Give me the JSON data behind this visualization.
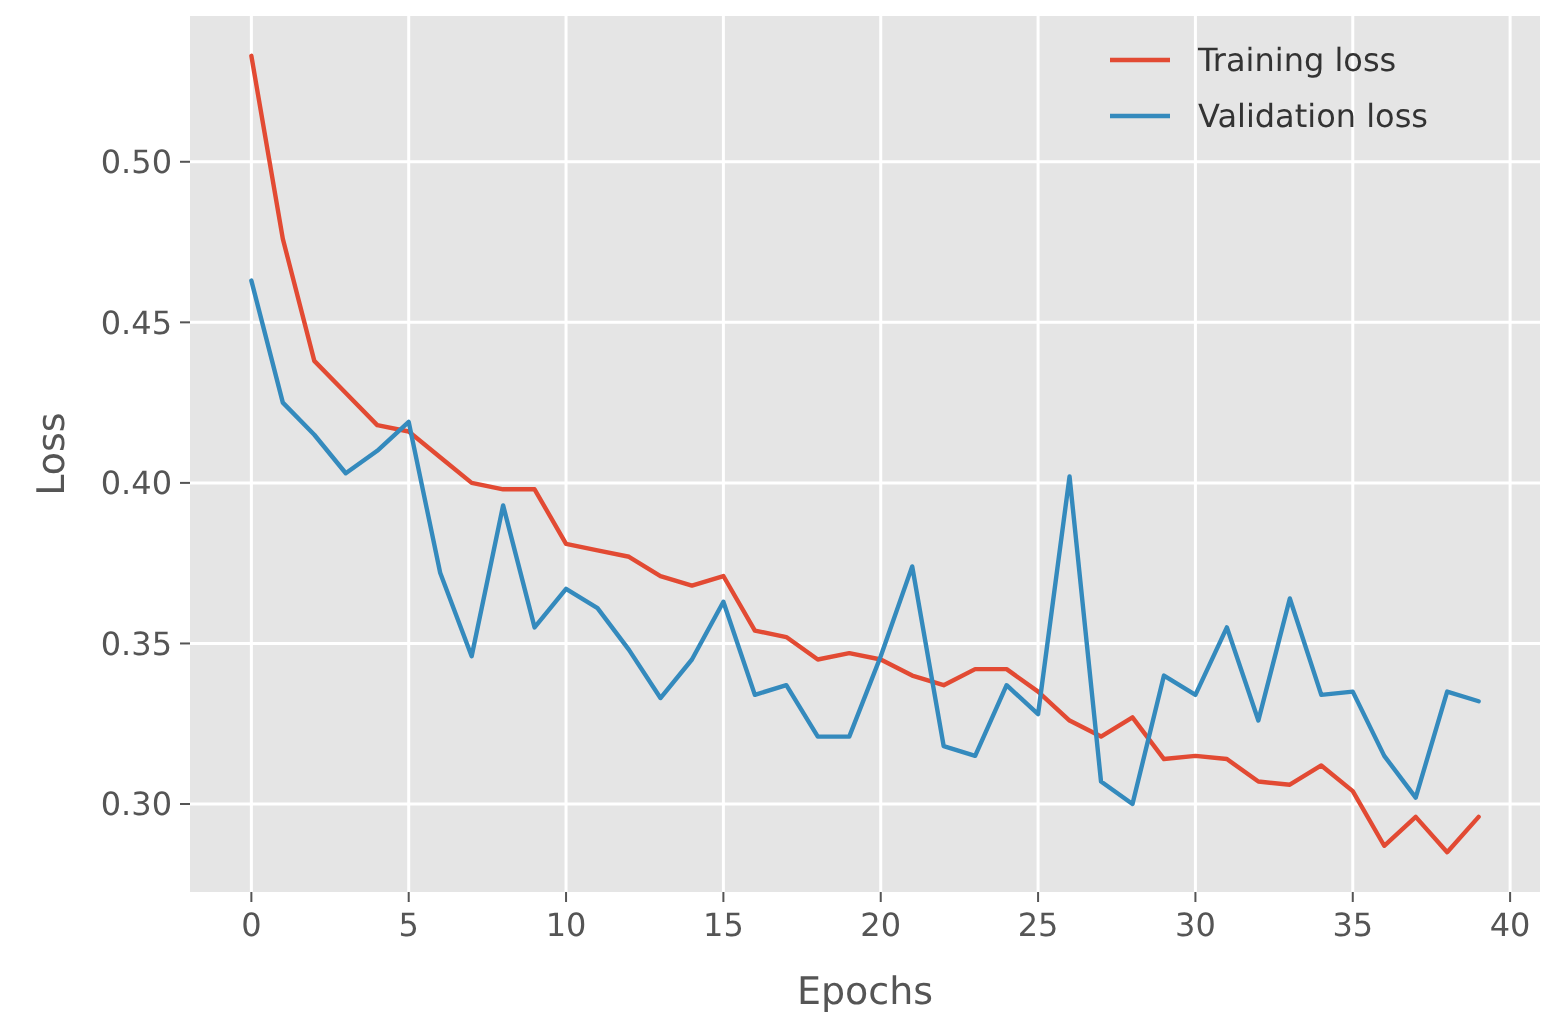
{
  "chart_data": {
    "type": "line",
    "xlabel": "Epochs",
    "ylabel": "Loss",
    "x": [
      0,
      1,
      2,
      3,
      4,
      5,
      6,
      7,
      8,
      9,
      10,
      11,
      12,
      13,
      14,
      15,
      16,
      17,
      18,
      19,
      20,
      21,
      22,
      23,
      24,
      25,
      26,
      27,
      28,
      29,
      30,
      31,
      32,
      33,
      34,
      35,
      36,
      37,
      38,
      39
    ],
    "series": [
      {
        "name": "Training loss",
        "color": "#e24a33",
        "values": [
          0.533,
          0.476,
          0.438,
          0.428,
          0.418,
          0.416,
          0.408,
          0.4,
          0.398,
          0.398,
          0.381,
          0.379,
          0.377,
          0.371,
          0.368,
          0.371,
          0.354,
          0.352,
          0.345,
          0.347,
          0.345,
          0.34,
          0.337,
          0.342,
          0.342,
          0.335,
          0.326,
          0.321,
          0.327,
          0.314,
          0.315,
          0.314,
          0.307,
          0.306,
          0.312,
          0.304,
          0.287,
          0.296,
          0.285,
          0.296
        ]
      },
      {
        "name": "Validation loss",
        "color": "#348abd",
        "values": [
          0.463,
          0.425,
          0.415,
          0.403,
          0.41,
          0.419,
          0.372,
          0.346,
          0.393,
          0.355,
          0.367,
          0.361,
          0.348,
          0.333,
          0.345,
          0.363,
          0.334,
          0.337,
          0.321,
          0.321,
          0.346,
          0.374,
          0.318,
          0.315,
          0.337,
          0.328,
          0.402,
          0.307,
          0.3,
          0.34,
          0.334,
          0.355,
          0.326,
          0.364,
          0.334,
          0.335,
          0.315,
          0.302,
          0.335,
          0.332
        ]
      }
    ],
    "xlim": [
      -1.95,
      40.95
    ],
    "xticks": [
      0,
      5,
      10,
      15,
      20,
      25,
      30,
      35,
      40
    ],
    "ylim": [
      0.2726,
      0.5454
    ],
    "yticks": [
      {
        "value": 0.3,
        "label": "0.30"
      },
      {
        "value": 0.35,
        "label": "0.35"
      },
      {
        "value": 0.4,
        "label": "0.40"
      },
      {
        "value": 0.45,
        "label": "0.45"
      },
      {
        "value": 0.5,
        "label": "0.50"
      }
    ],
    "grid": true,
    "legend": "top right",
    "marker": "none",
    "line_style": "solid"
  }
}
